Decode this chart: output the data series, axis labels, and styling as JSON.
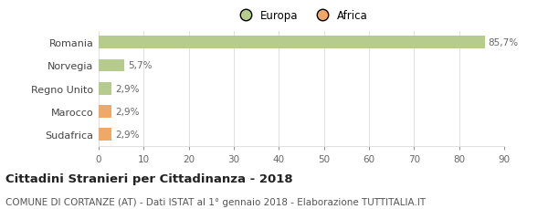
{
  "categories": [
    "Sudafrica",
    "Marocco",
    "Regno Unito",
    "Norvegia",
    "Romania"
  ],
  "values": [
    2.9,
    2.9,
    2.9,
    5.7,
    85.7
  ],
  "colors": [
    "#f0a868",
    "#f0a868",
    "#b5cc8e",
    "#b5cc8e",
    "#b5cc8e"
  ],
  "labels": [
    "2,9%",
    "2,9%",
    "2,9%",
    "5,7%",
    "85,7%"
  ],
  "legend_labels": [
    "Europa",
    "Africa"
  ],
  "legend_colors": [
    "#b5cc8e",
    "#f0a868"
  ],
  "xlim": [
    0,
    90
  ],
  "xticks": [
    0,
    10,
    20,
    30,
    40,
    50,
    60,
    70,
    80,
    90
  ],
  "title": "Cittadini Stranieri per Cittadinanza - 2018",
  "subtitle": "COMUNE DI CORTANZE (AT) - Dati ISTAT al 1° gennaio 2018 - Elaborazione TUTTITALIA.IT",
  "background_color": "#ffffff",
  "grid_color": "#e0e0e0",
  "bar_height": 0.55,
  "label_fontsize": 7.5,
  "title_fontsize": 9.5,
  "subtitle_fontsize": 7.5
}
